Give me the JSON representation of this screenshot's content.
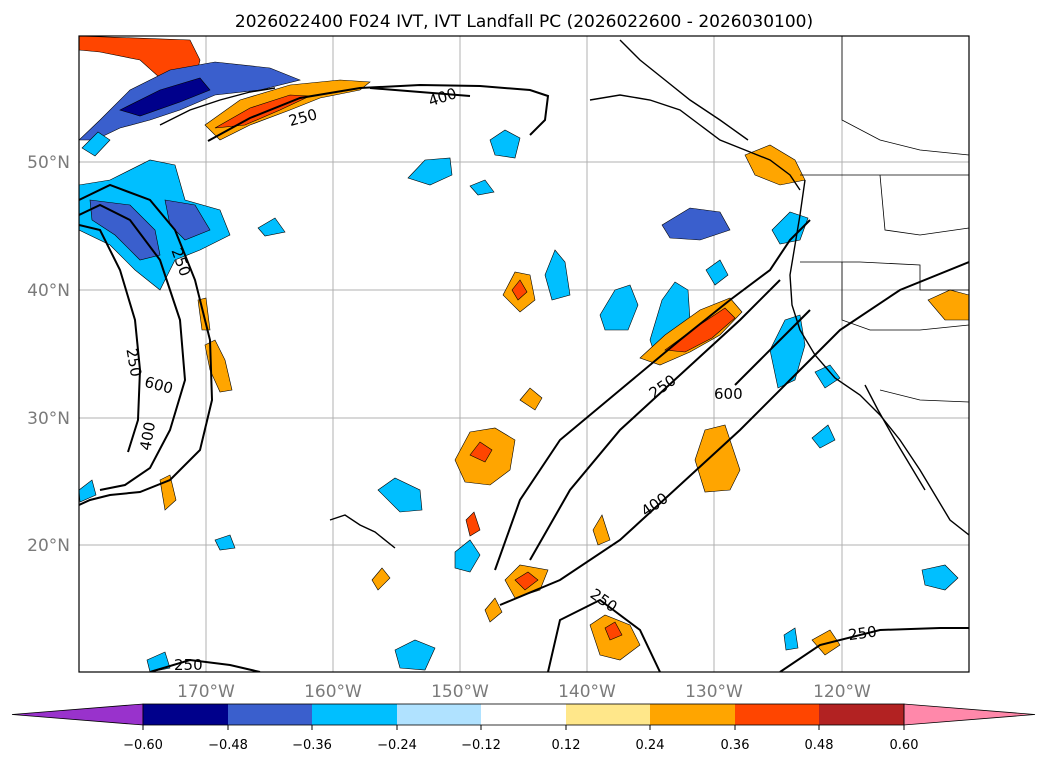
{
  "title": "2026022400 F024 IVT, IVT Landfall PC (2026022600 - 2026030100)",
  "lat_labels": [
    "50°N",
    "40°N",
    "30°N",
    "20°N"
  ],
  "lon_labels": [
    "170°W",
    "160°W",
    "150°W",
    "140°W",
    "130°W",
    "120°W"
  ],
  "contour_labels": [
    "400",
    "250",
    "250",
    "250",
    "600",
    "400",
    "250",
    "600",
    "400",
    "250",
    "250",
    "250"
  ],
  "colorbar": {
    "ticks": [
      "−0.60",
      "−0.48",
      "−0.36",
      "−0.24",
      "−0.12",
      "0.12",
      "0.24",
      "0.36",
      "0.48",
      "0.60"
    ],
    "colors": {
      "under": "#9932cc",
      "bins": [
        "#00008b",
        "#3a5fcd",
        "#00bfff",
        "#b0e2ff",
        "#ffffff",
        "#ffe78a",
        "#ffa500",
        "#ff4500",
        "#b22222"
      ],
      "over": "#ff88aa"
    }
  }
}
